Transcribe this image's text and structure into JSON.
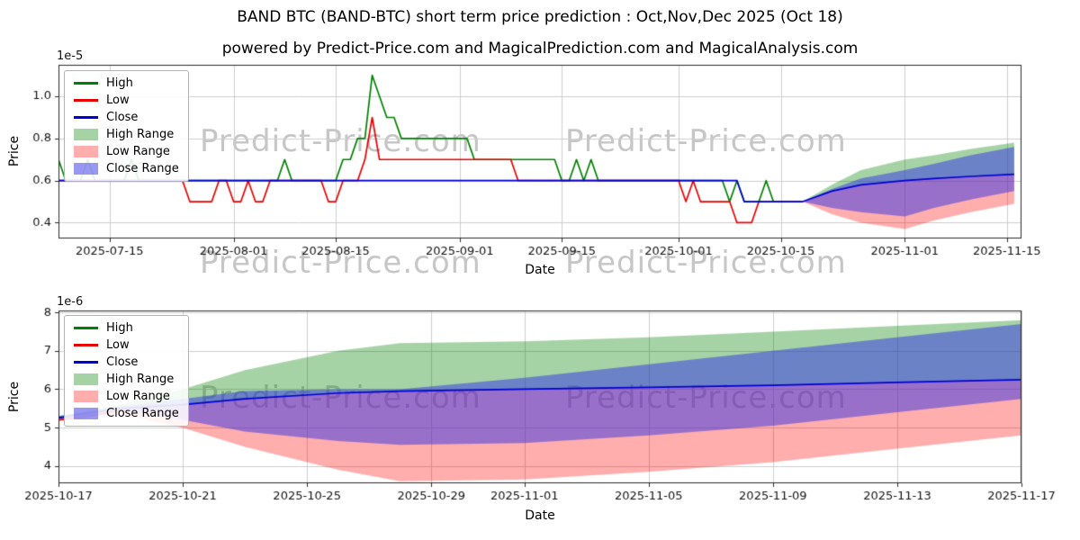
{
  "page": {
    "title": "BAND BTC (BAND-BTC) short term price prediction : Oct,Nov,Dec 2025 (Oct 18)",
    "subtitle": "powered by Predict-Price.com and MagicalPrediction.com and MagicalAnalysis.com",
    "watermark": "Predict-Price.com"
  },
  "colors": {
    "high_line": "#008000",
    "low_line": "#e60000",
    "close_line": "#0000d4",
    "high_range_fill": "rgba(0,128,0,0.35)",
    "low_range_fill": "rgba(255,0,0,0.32)",
    "close_range_fill": "rgba(50,50,230,0.5)",
    "grid": "#cccccc",
    "spine": "#2a2a2a",
    "tick_text": "#111111"
  },
  "legend": {
    "items": [
      {
        "label": "High",
        "kind": "line",
        "color": "#008000"
      },
      {
        "label": "Low",
        "kind": "line",
        "color": "#e60000"
      },
      {
        "label": "Close",
        "kind": "line",
        "color": "#0000d4"
      },
      {
        "label": "High Range",
        "kind": "patch",
        "color": "rgba(0,128,0,0.35)"
      },
      {
        "label": "Low Range",
        "kind": "patch",
        "color": "rgba(255,0,0,0.32)"
      },
      {
        "label": "Close Range",
        "kind": "patch",
        "color": "rgba(50,50,230,0.5)"
      }
    ]
  },
  "chart_data": [
    {
      "type": "line",
      "title": "",
      "xlabel": "Date",
      "ylabel": "Price",
      "offset_text": "1e-5",
      "xlim": [
        "2025-07-08",
        "2025-11-17"
      ],
      "ylim": [
        0.325,
        1.15
      ],
      "yticks": {
        "values": [
          0.4,
          0.6,
          0.8,
          1.0
        ],
        "labels": [
          "0.4",
          "0.6",
          "0.8",
          "1.0"
        ]
      },
      "xticks": {
        "values": [
          "2025-07-15",
          "2025-08-01",
          "2025-08-15",
          "2025-09-01",
          "2025-09-15",
          "2025-10-01",
          "2025-10-15",
          "2025-11-01",
          "2025-11-15"
        ],
        "labels": [
          "2025-07-15",
          "2025-08-01",
          "2025-08-15",
          "2025-09-01",
          "2025-09-15",
          "2025-10-01",
          "2025-10-15",
          "2025-11-01",
          "2025-11-15"
        ]
      },
      "bands": [
        {
          "name": "High Range",
          "color": "rgba(0,128,0,0.35)",
          "x": [
            "2025-10-18",
            "2025-10-22",
            "2025-10-26",
            "2025-11-01",
            "2025-11-05",
            "2025-11-10",
            "2025-11-16"
          ],
          "upper": [
            0.5,
            0.58,
            0.65,
            0.7,
            0.72,
            0.75,
            0.78
          ],
          "lower": [
            0.5,
            0.55,
            0.58,
            0.6,
            0.61,
            0.62,
            0.63
          ]
        },
        {
          "name": "Low Range",
          "color": "rgba(255,0,0,0.32)",
          "x": [
            "2025-10-18",
            "2025-10-22",
            "2025-10-26",
            "2025-11-01",
            "2025-11-05",
            "2025-11-10",
            "2025-11-16"
          ],
          "upper": [
            0.5,
            0.55,
            0.58,
            0.6,
            0.61,
            0.62,
            0.63
          ],
          "lower": [
            0.5,
            0.44,
            0.4,
            0.37,
            0.41,
            0.45,
            0.49
          ]
        },
        {
          "name": "Close Range",
          "color": "rgba(50,50,230,0.5)",
          "x": [
            "2025-10-18",
            "2025-10-22",
            "2025-10-26",
            "2025-11-01",
            "2025-11-05",
            "2025-11-10",
            "2025-11-16"
          ],
          "upper": [
            0.5,
            0.56,
            0.61,
            0.65,
            0.68,
            0.72,
            0.76
          ],
          "lower": [
            0.5,
            0.47,
            0.45,
            0.43,
            0.47,
            0.51,
            0.55
          ]
        }
      ],
      "series": [
        {
          "name": "High",
          "color": "#008000",
          "x": [
            "2025-07-08",
            "2025-07-09",
            "2025-07-11",
            "2025-07-12",
            "2025-07-13",
            "2025-07-17",
            "2025-07-18",
            "2025-07-19",
            "2025-08-07",
            "2025-08-08",
            "2025-08-09",
            "2025-08-15",
            "2025-08-16",
            "2025-08-17",
            "2025-08-18",
            "2025-08-19",
            "2025-08-20",
            "2025-08-21",
            "2025-08-22",
            "2025-08-23",
            "2025-08-24",
            "2025-09-02",
            "2025-09-03",
            "2025-09-14",
            "2025-09-15",
            "2025-09-16",
            "2025-09-17",
            "2025-09-18",
            "2025-09-19",
            "2025-09-20",
            "2025-10-07",
            "2025-10-08",
            "2025-10-09",
            "2025-10-10",
            "2025-10-12",
            "2025-10-13",
            "2025-10-14",
            "2025-10-18"
          ],
          "y": [
            0.7,
            0.6,
            0.6,
            0.7,
            0.6,
            0.6,
            0.7,
            0.6,
            0.6,
            0.7,
            0.6,
            0.6,
            0.7,
            0.7,
            0.8,
            0.8,
            1.1,
            1.0,
            0.9,
            0.9,
            0.8,
            0.8,
            0.7,
            0.7,
            0.6,
            0.6,
            0.7,
            0.6,
            0.7,
            0.6,
            0.6,
            0.5,
            0.6,
            0.5,
            0.5,
            0.6,
            0.5,
            0.5
          ]
        },
        {
          "name": "Low",
          "color": "#e60000",
          "x": [
            "2025-07-08",
            "2025-07-25",
            "2025-07-26",
            "2025-07-29",
            "2025-07-30",
            "2025-07-31",
            "2025-08-01",
            "2025-08-02",
            "2025-08-03",
            "2025-08-04",
            "2025-08-05",
            "2025-08-06",
            "2025-08-13",
            "2025-08-14",
            "2025-08-15",
            "2025-08-16",
            "2025-08-18",
            "2025-08-19",
            "2025-08-20",
            "2025-08-21",
            "2025-09-08",
            "2025-09-09",
            "2025-10-01",
            "2025-10-02",
            "2025-10-03",
            "2025-10-04",
            "2025-10-07",
            "2025-10-08",
            "2025-10-09",
            "2025-10-11",
            "2025-10-12",
            "2025-10-18"
          ],
          "y": [
            0.6,
            0.6,
            0.5,
            0.5,
            0.6,
            0.6,
            0.5,
            0.5,
            0.6,
            0.5,
            0.5,
            0.6,
            0.6,
            0.5,
            0.5,
            0.6,
            0.6,
            0.7,
            0.9,
            0.7,
            0.7,
            0.6,
            0.6,
            0.5,
            0.6,
            0.5,
            0.5,
            0.5,
            0.4,
            0.4,
            0.5,
            0.5
          ]
        },
        {
          "name": "Close",
          "color": "#0000d4",
          "x": [
            "2025-07-08",
            "2025-10-09",
            "2025-10-10",
            "2025-10-18",
            "2025-10-22",
            "2025-10-26",
            "2025-11-01",
            "2025-11-05",
            "2025-11-10",
            "2025-11-16"
          ],
          "y": [
            0.6,
            0.6,
            0.5,
            0.5,
            0.55,
            0.58,
            0.6,
            0.61,
            0.62,
            0.63
          ]
        }
      ]
    },
    {
      "type": "line",
      "title": "",
      "xlabel": "Date",
      "ylabel": "Price",
      "offset_text": "1e-6",
      "xlim": [
        "2025-10-17",
        "2025-11-17"
      ],
      "ylim": [
        3.55,
        8.05
      ],
      "yticks": {
        "values": [
          4,
          5,
          6,
          7,
          8
        ],
        "labels": [
          "4",
          "5",
          "6",
          "7",
          "8"
        ]
      },
      "xticks": {
        "values": [
          "2025-10-17",
          "2025-10-21",
          "2025-10-25",
          "2025-10-29",
          "2025-11-01",
          "2025-11-05",
          "2025-11-09",
          "2025-11-13",
          "2025-11-17"
        ],
        "labels": [
          "2025-10-17",
          "2025-10-21",
          "2025-10-25",
          "2025-10-29",
          "2025-11-01",
          "2025-11-05",
          "2025-11-09",
          "2025-11-13",
          "2025-11-17"
        ]
      },
      "bands": [
        {
          "name": "High Range",
          "color": "rgba(0,128,0,0.35)",
          "x": [
            "2025-10-17",
            "2025-10-19",
            "2025-10-21",
            "2025-10-23",
            "2025-10-26",
            "2025-10-28",
            "2025-11-01",
            "2025-11-05",
            "2025-11-09",
            "2025-11-13",
            "2025-11-17"
          ],
          "upper": [
            5.3,
            5.6,
            6.0,
            6.5,
            7.0,
            7.2,
            7.25,
            7.35,
            7.5,
            7.65,
            7.8
          ],
          "lower": [
            5.25,
            5.5,
            5.6,
            5.75,
            5.9,
            5.95,
            6.0,
            6.05,
            6.1,
            6.18,
            6.25
          ]
        },
        {
          "name": "Low Range",
          "color": "rgba(255,0,0,0.32)",
          "x": [
            "2025-10-17",
            "2025-10-19",
            "2025-10-21",
            "2025-10-23",
            "2025-10-26",
            "2025-10-28",
            "2025-11-01",
            "2025-11-05",
            "2025-11-09",
            "2025-11-13",
            "2025-11-17"
          ],
          "upper": [
            5.25,
            5.5,
            5.6,
            5.75,
            5.9,
            5.95,
            6.0,
            6.05,
            6.1,
            6.18,
            6.25
          ],
          "lower": [
            5.2,
            5.35,
            5.0,
            4.5,
            3.9,
            3.6,
            3.65,
            3.85,
            4.1,
            4.45,
            4.8
          ]
        },
        {
          "name": "Close Range",
          "color": "rgba(50,50,230,0.5)",
          "x": [
            "2025-10-17",
            "2025-10-19",
            "2025-10-21",
            "2025-10-23",
            "2025-10-26",
            "2025-10-28",
            "2025-11-01",
            "2025-11-05",
            "2025-11-09",
            "2025-11-13",
            "2025-11-17"
          ],
          "upper": [
            5.3,
            5.55,
            5.75,
            5.95,
            6.0,
            6.0,
            6.3,
            6.65,
            7.0,
            7.35,
            7.7
          ],
          "lower": [
            5.25,
            5.45,
            5.2,
            4.9,
            4.65,
            4.55,
            4.6,
            4.8,
            5.05,
            5.4,
            5.75
          ]
        }
      ],
      "series": [
        {
          "name": "High",
          "color": "#008000",
          "x": [
            "2025-10-17",
            "2025-10-18",
            "2025-10-19"
          ],
          "y": [
            5.25,
            5.4,
            5.5
          ]
        },
        {
          "name": "Low",
          "color": "#e60000",
          "x": [
            "2025-10-17",
            "2025-10-18",
            "2025-10-19"
          ],
          "y": [
            5.2,
            5.3,
            5.45
          ]
        },
        {
          "name": "Close",
          "color": "#0000d4",
          "x": [
            "2025-10-17",
            "2025-10-19",
            "2025-10-21",
            "2025-10-23",
            "2025-10-26",
            "2025-10-28",
            "2025-11-01",
            "2025-11-05",
            "2025-11-09",
            "2025-11-13",
            "2025-11-17"
          ],
          "y": [
            5.25,
            5.5,
            5.6,
            5.75,
            5.9,
            5.95,
            6.0,
            6.05,
            6.1,
            6.18,
            6.25
          ]
        }
      ]
    }
  ]
}
